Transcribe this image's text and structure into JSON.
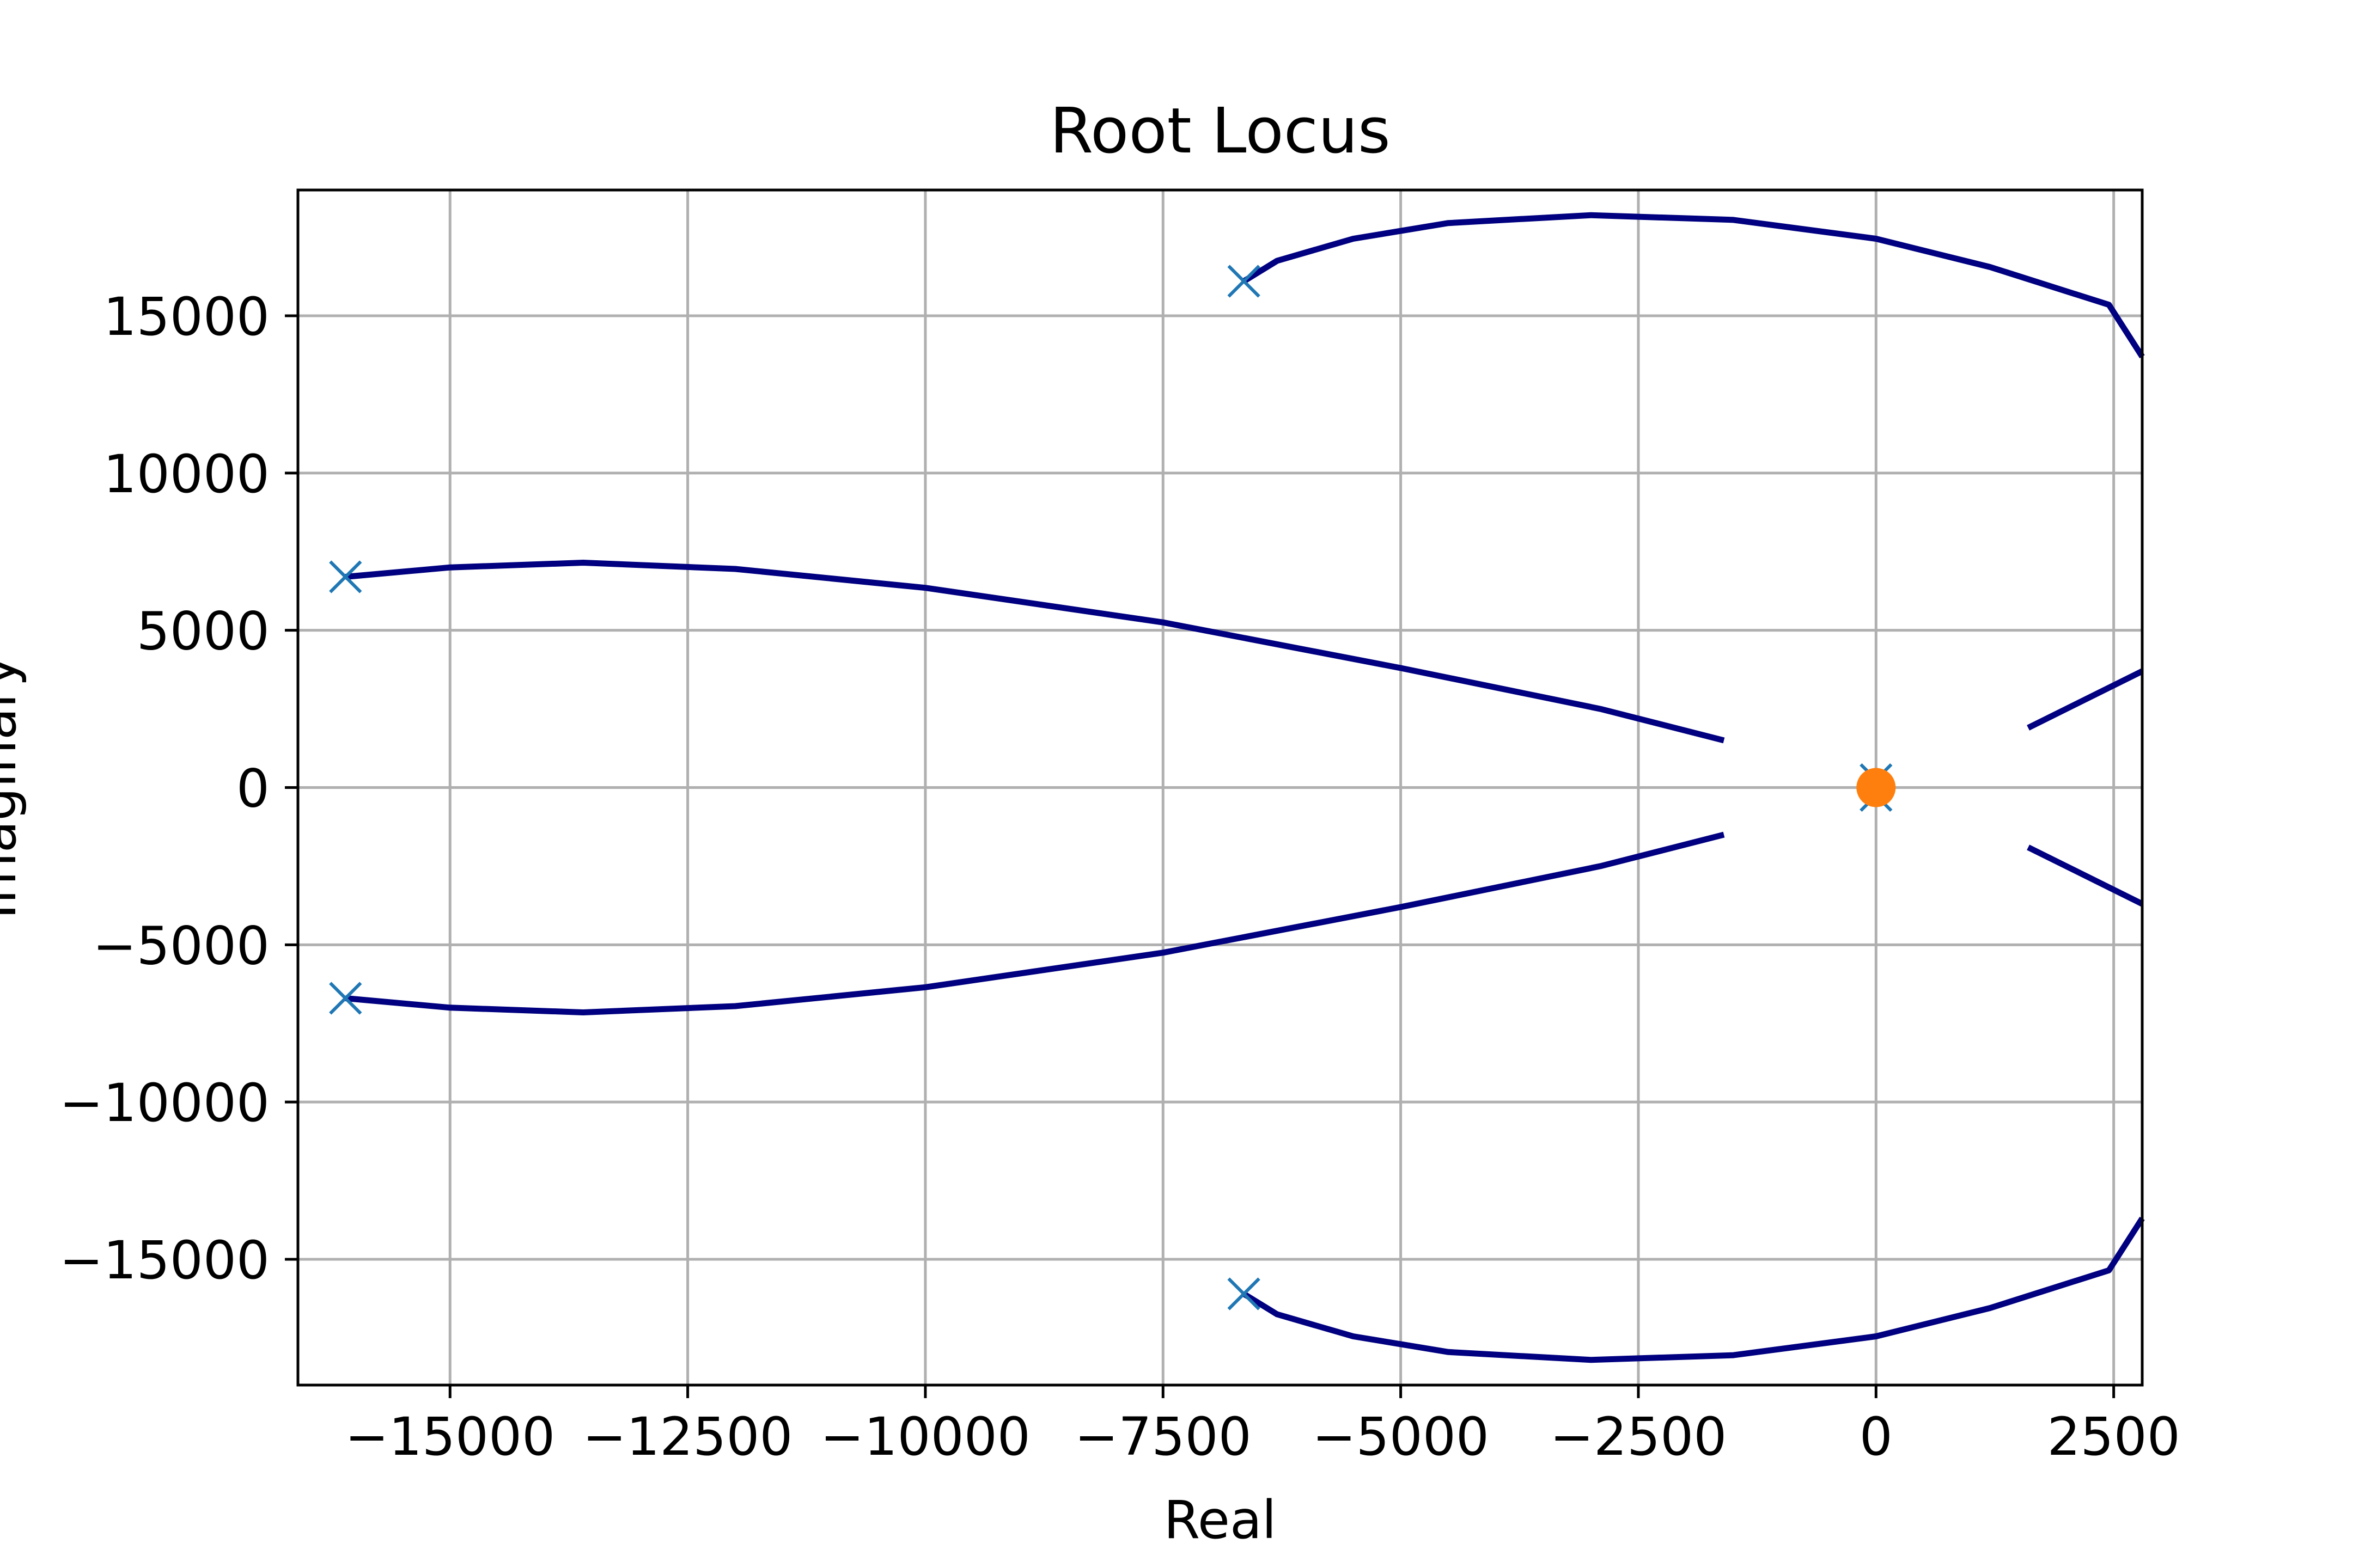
{
  "chart_data": {
    "type": "line",
    "title": "Root Locus",
    "xlabel": "Real",
    "ylabel": "Imaginary",
    "xlim": [
      -16600,
      2800
    ],
    "ylim": [
      -19000,
      19000
    ],
    "xticks": [
      -15000,
      -12500,
      -10000,
      -7500,
      -5000,
      -2500,
      0,
      2500
    ],
    "xtick_labels": [
      "−15000",
      "−12500",
      "−10000",
      "−7500",
      "−5000",
      "−2500",
      "0",
      "2500"
    ],
    "yticks": [
      15000,
      10000,
      5000,
      0,
      -5000,
      -10000,
      -15000
    ],
    "ytick_labels": [
      "15000",
      "10000",
      "5000",
      "0",
      "−5000",
      "−10000",
      "−15000"
    ],
    "grid": true,
    "colors": {
      "locus": "#000080",
      "pole": "#1f77b4",
      "zero": "#ff7f0e",
      "grid": "#b0b0b0"
    },
    "series": [
      {
        "points": [
          [
            -6650,
            16100
          ],
          [
            -6300,
            16750
          ],
          [
            -5500,
            17450
          ],
          [
            -4500,
            17950
          ],
          [
            -3000,
            18200
          ],
          [
            -1500,
            18050
          ],
          [
            0,
            17450
          ],
          [
            1200,
            16550
          ],
          [
            2450,
            15350
          ],
          [
            2800,
            13700
          ]
        ]
      },
      {
        "points": [
          [
            -6650,
            -16100
          ],
          [
            -6300,
            -16750
          ],
          [
            -5500,
            -17450
          ],
          [
            -4500,
            -17950
          ],
          [
            -3000,
            -18200
          ],
          [
            -1500,
            -18050
          ],
          [
            0,
            -17450
          ],
          [
            1200,
            -16550
          ],
          [
            2450,
            -15350
          ],
          [
            2800,
            -13700
          ]
        ]
      },
      {
        "points": [
          [
            -16100,
            6700
          ],
          [
            -15000,
            7000
          ],
          [
            -13600,
            7150
          ],
          [
            -12000,
            6950
          ],
          [
            -10000,
            6350
          ],
          [
            -7500,
            5250
          ],
          [
            -5000,
            3800
          ],
          [
            -2900,
            2500
          ],
          [
            -1600,
            1500
          ]
        ]
      },
      {
        "points": [
          [
            -16100,
            -6700
          ],
          [
            -15000,
            -7000
          ],
          [
            -13600,
            -7150
          ],
          [
            -12000,
            -6950
          ],
          [
            -10000,
            -6350
          ],
          [
            -7500,
            -5250
          ],
          [
            -5000,
            -3800
          ],
          [
            -2900,
            -2500
          ],
          [
            -1600,
            -1500
          ]
        ]
      },
      {
        "points": [
          [
            1600,
            1900
          ],
          [
            2800,
            3700
          ]
        ]
      },
      {
        "points": [
          [
            1600,
            -1900
          ],
          [
            2800,
            -3700
          ]
        ]
      }
    ],
    "poles": [
      [
        -16100,
        6700
      ],
      [
        -16100,
        -6700
      ],
      [
        -6650,
        16100
      ],
      [
        -6650,
        -16100
      ],
      [
        0,
        250
      ],
      [
        0,
        -250
      ]
    ],
    "zeros": [
      [
        0,
        0
      ]
    ]
  }
}
